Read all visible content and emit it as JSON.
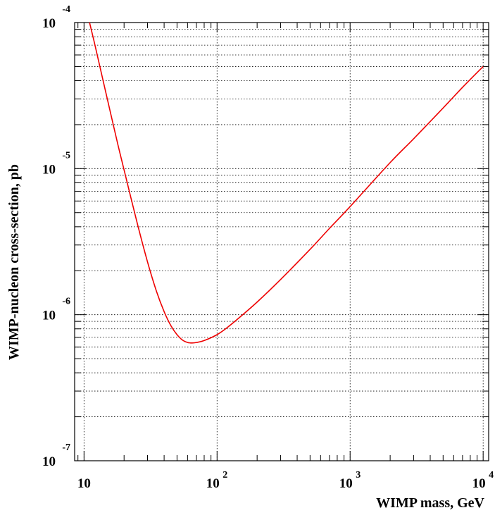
{
  "chart_data": {
    "type": "line",
    "xlabel": "WIMP mass, GeV",
    "ylabel": "WIMP-nucleon cross-section, pb",
    "xscale": "log",
    "yscale": "log",
    "xlim": [
      8.5,
      11000
    ],
    "ylim": [
      1e-07,
      0.0001
    ],
    "grid": true,
    "grid_style": "dotted",
    "line_color": "#ee0000",
    "x_ticks": [
      {
        "value": 10,
        "base": "10",
        "exp": ""
      },
      {
        "value": 100,
        "base": "10",
        "exp": "2"
      },
      {
        "value": 1000,
        "base": "10",
        "exp": "3"
      },
      {
        "value": 10000,
        "base": "10",
        "exp": "4"
      }
    ],
    "y_ticks": [
      {
        "value": 0.0001,
        "base": "10",
        "exp": "-4"
      },
      {
        "value": 1e-05,
        "base": "10",
        "exp": "-5"
      },
      {
        "value": 1e-06,
        "base": "10",
        "exp": "-6"
      },
      {
        "value": 1e-07,
        "base": "10",
        "exp": "-7"
      }
    ],
    "series": [
      {
        "x": [
          11,
          12,
          14,
          16,
          18,
          20,
          25,
          30,
          35,
          40,
          45,
          50,
          55,
          60,
          65,
          70,
          80,
          100,
          120,
          150,
          200,
          300,
          500,
          700,
          1000,
          2000,
          3000,
          5000,
          7000,
          10000
        ],
        "y": [
          0.0001,
          7.2e-05,
          3.9e-05,
          2.3e-05,
          1.45e-05,
          9.8e-06,
          4.3e-06,
          2.3e-06,
          1.45e-06,
          1.05e-06,
          8.4e-07,
          7.3e-07,
          6.7e-07,
          6.45e-07,
          6.4e-07,
          6.45e-07,
          6.65e-07,
          7.3e-07,
          8.2e-07,
          9.7e-07,
          1.22e-06,
          1.74e-06,
          2.8e-06,
          3.9e-06,
          5.5e-06,
          1.1e-05,
          1.6e-05,
          2.6e-05,
          3.6e-05,
          5e-05
        ]
      }
    ]
  }
}
